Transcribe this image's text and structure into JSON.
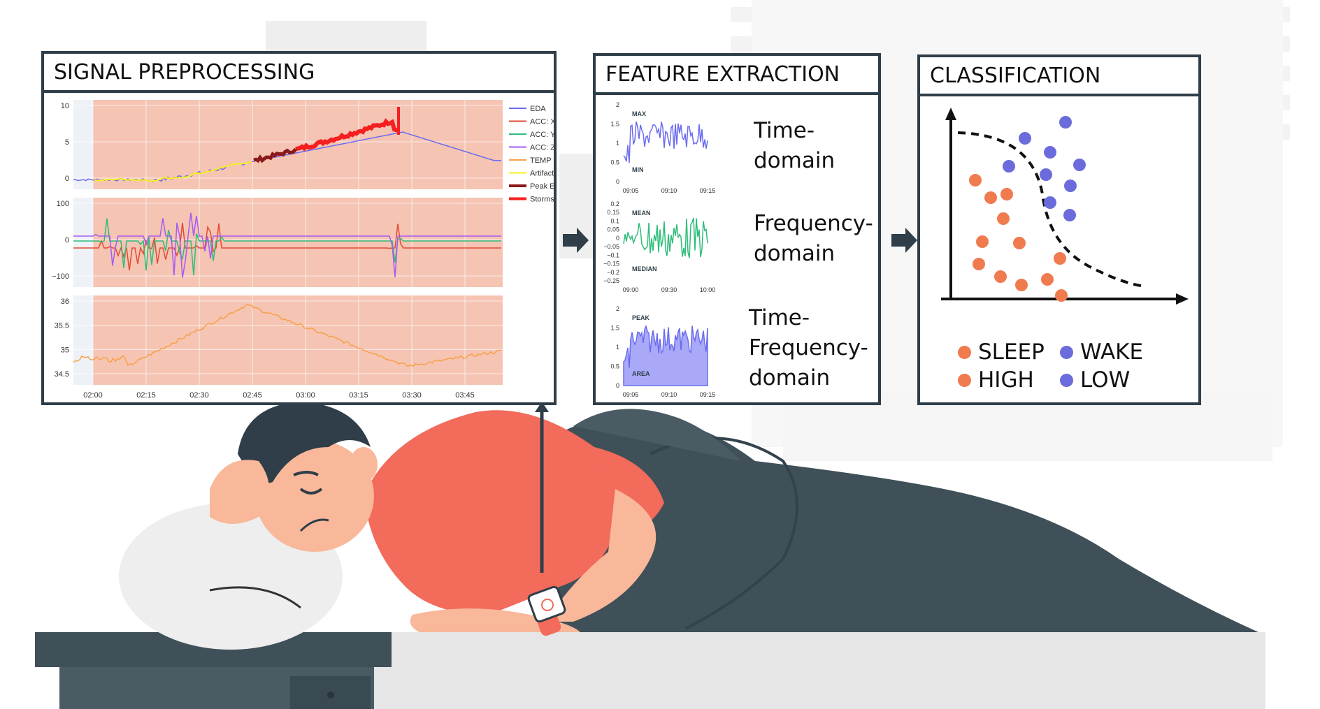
{
  "panels": {
    "preprocessing": {
      "title": "SIGNAL PREPROCESSING"
    },
    "features": {
      "title": "FEATURE EXTRACTION"
    },
    "classification": {
      "title": "CLASSIFICATION"
    }
  },
  "colors": {
    "border": "#2f3e48",
    "storm_background": "#f5c4b3",
    "eda": "#6b6bf0",
    "acc_x": "#e24b32",
    "acc_y": "#2ebd7a",
    "acc_z": "#a45cf2",
    "temp": "#f7a04a",
    "artifacts": "#f5f021",
    "peak_epochs": "#8b1a1a",
    "storms": "#f51f1f",
    "sleep_high": "#f07b4f",
    "wake_low": "#6b6bdc",
    "shirt": "#f26b5b",
    "blanket": "#3f5058",
    "skin": "#f9b89a"
  },
  "chart_data": [
    {
      "type": "line",
      "title": "",
      "x_ticks": [
        "02:00",
        "02:15",
        "02:30",
        "02:45",
        "03:00",
        "03:15",
        "03:30",
        "03:45"
      ],
      "legend": [
        "EDA",
        "ACC: X",
        "ACC: Y",
        "ACC: Z",
        "TEMP",
        "Artifacts",
        "Peak Epochs",
        "Storms"
      ],
      "legend_position": "right",
      "subplots": [
        {
          "series": "EDA",
          "y_ticks": [
            "10",
            "5",
            "0"
          ],
          "ylim": [
            0,
            10
          ]
        },
        {
          "series": [
            "ACC: X",
            "ACC: Y",
            "ACC: Z"
          ],
          "y_ticks": [
            "100",
            "0",
            "−100"
          ],
          "ylim": [
            -130,
            130
          ]
        },
        {
          "series": "TEMP",
          "y_ticks": [
            "36",
            "35.5",
            "35",
            "34.5"
          ],
          "ylim": [
            34.2,
            36.1
          ]
        }
      ]
    },
    {
      "type": "line",
      "y_ticks": [
        "2",
        "1.5",
        "1",
        "0.5",
        "0"
      ],
      "x_ticks": [
        "09:05",
        "09:10",
        "09:15"
      ],
      "annotations": [
        "MAX",
        "MIN"
      ]
    },
    {
      "type": "line",
      "y_ticks": [
        "0.2",
        "0.15",
        "0.1",
        "0.05",
        "0",
        "−0.05",
        "−0.1",
        "−0.15",
        "−0.2",
        "−0.25"
      ],
      "x_ticks": [
        "09:00",
        "09:30",
        "10:00"
      ],
      "annotations": [
        "MEAN",
        "MEDIAN"
      ]
    },
    {
      "type": "area",
      "y_ticks": [
        "2",
        "1.5",
        "1",
        "0.5",
        "0"
      ],
      "x_ticks": [
        "09:05",
        "09:10",
        "09:15"
      ],
      "annotations": [
        "PEAK",
        "AREA"
      ]
    },
    {
      "type": "scatter",
      "decision_boundary": "dashed",
      "classes": [
        "SLEEP",
        "WAKE",
        "HIGH",
        "LOW"
      ]
    }
  ],
  "features": {
    "time": [
      "Time-",
      "domain"
    ],
    "freq": [
      "Frequency-",
      "domain"
    ],
    "tf": [
      "Time-",
      "Frequency-",
      "domain"
    ]
  },
  "legend": {
    "sleep": "SLEEP",
    "wake": "WAKE",
    "high": "HIGH",
    "low": "LOW"
  }
}
